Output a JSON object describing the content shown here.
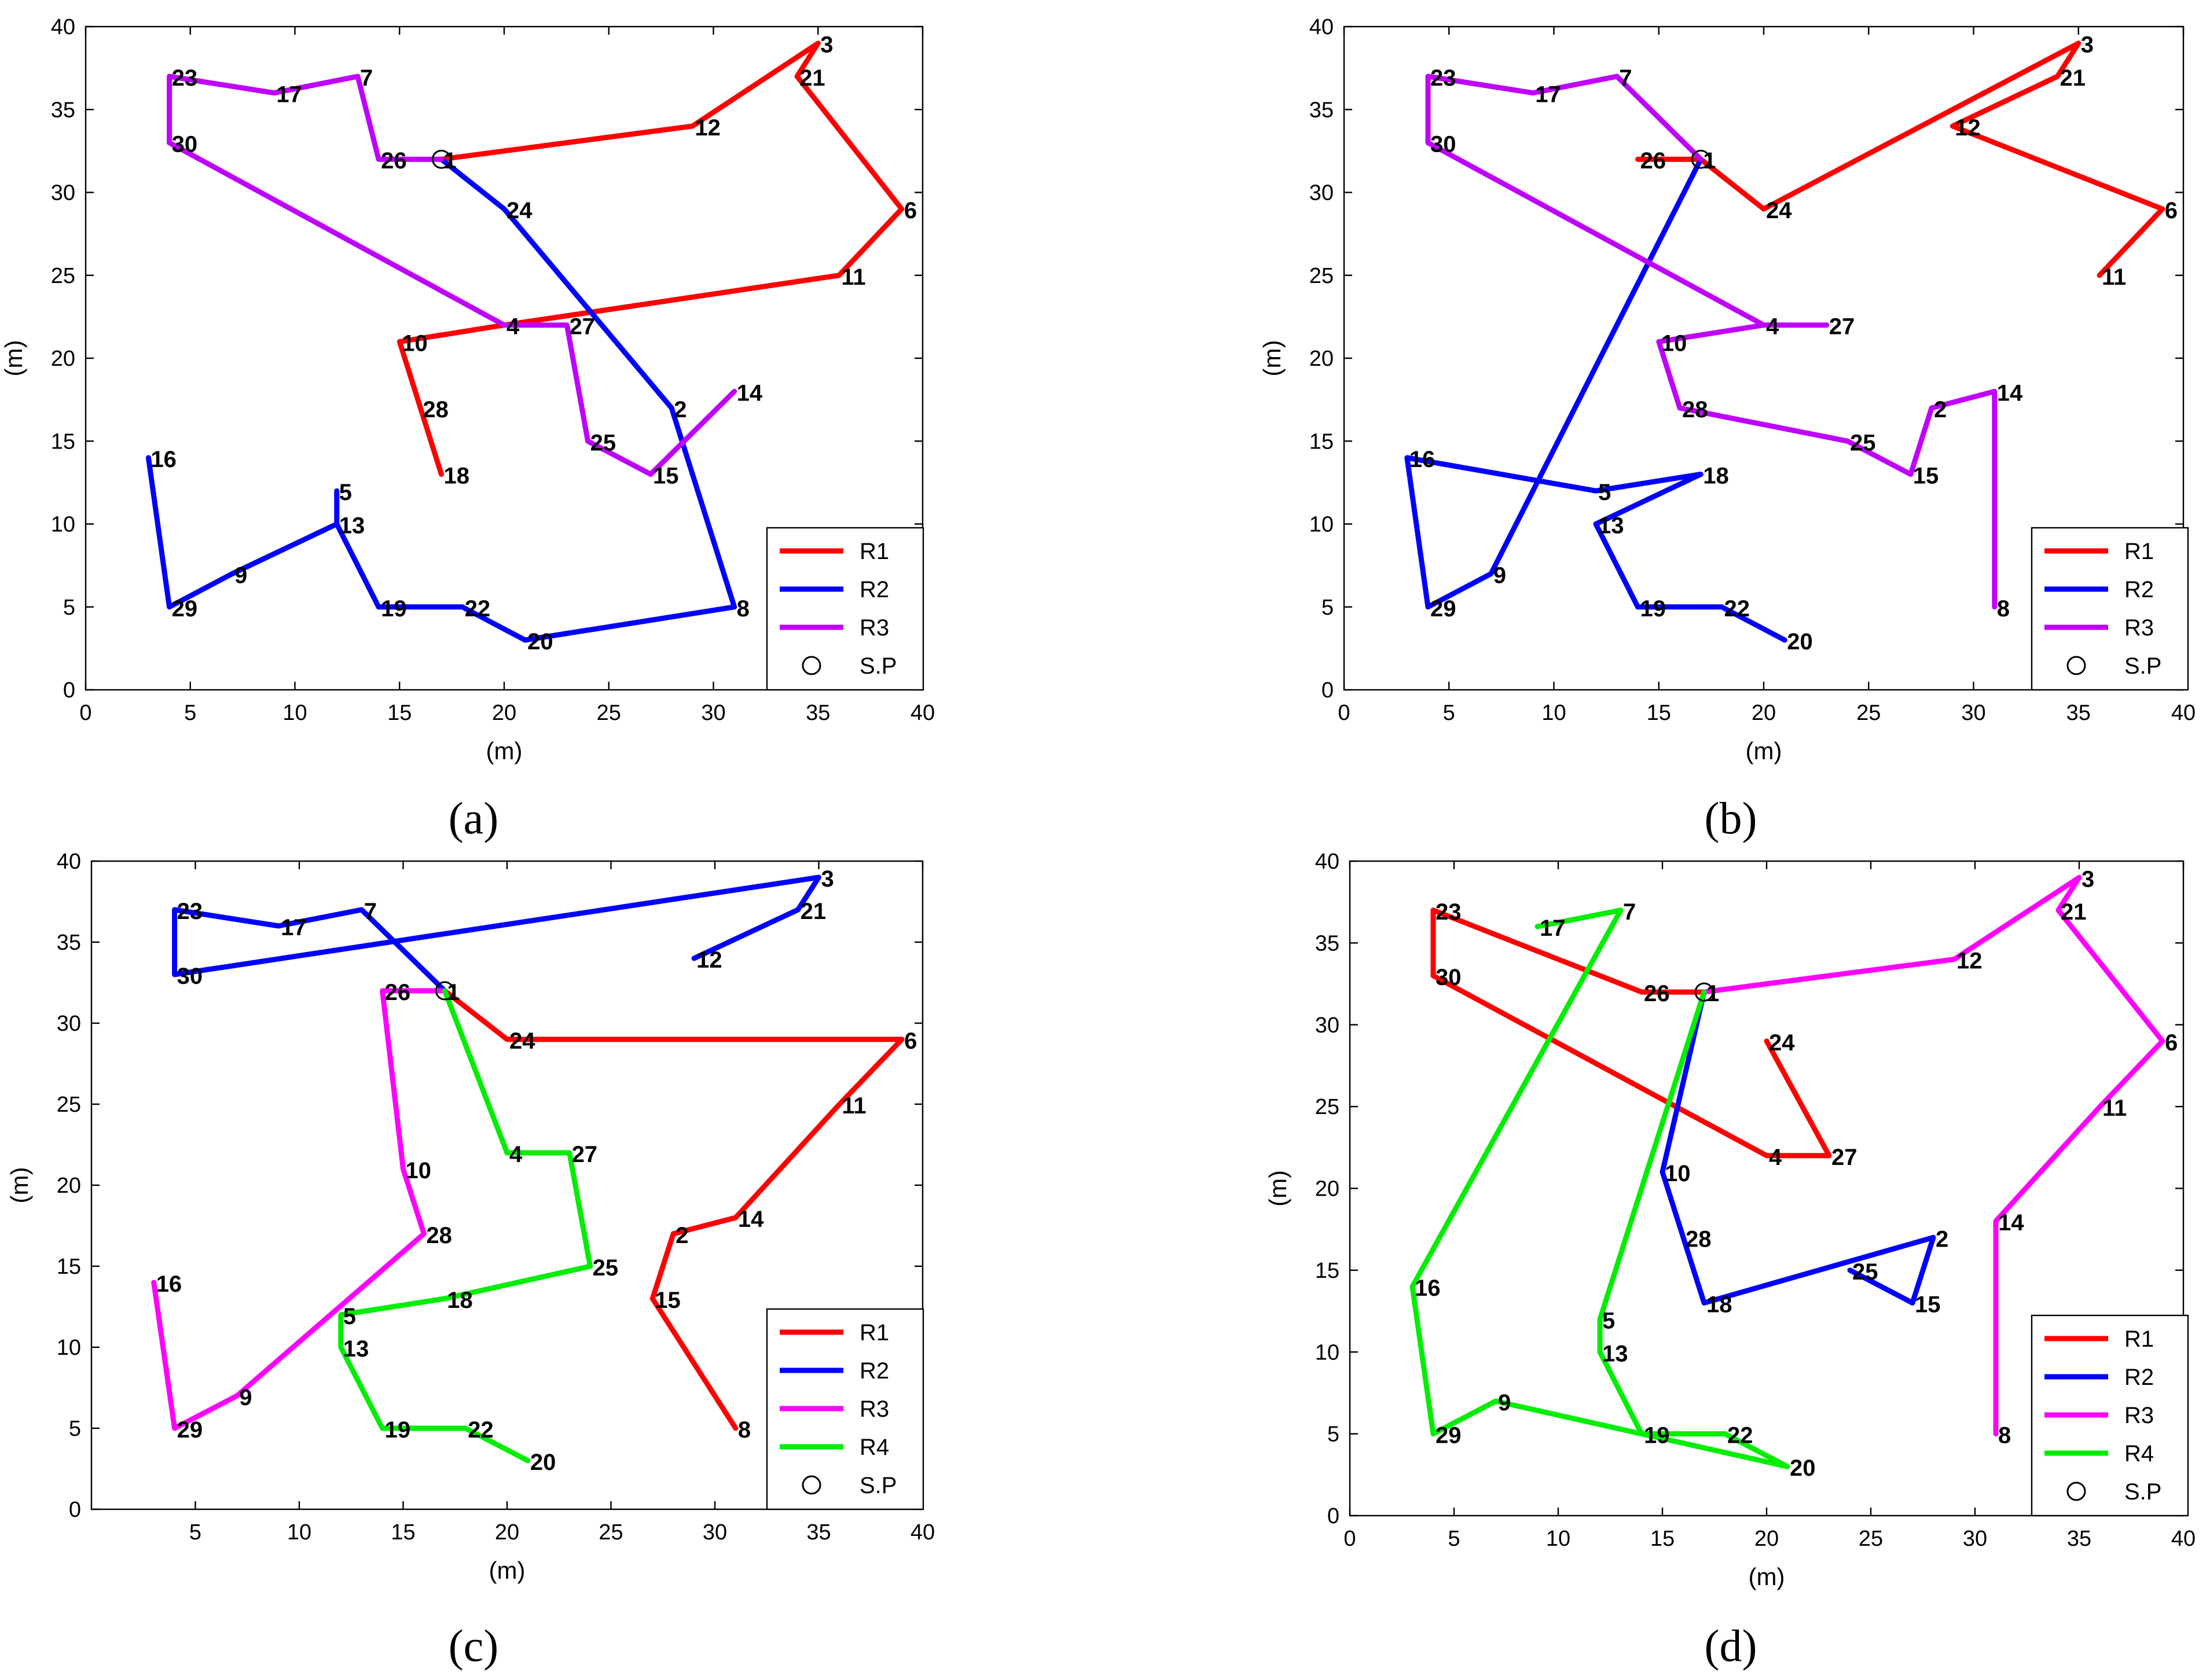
{
  "chart_data": [
    {
      "type": "line",
      "panel": "(a)",
      "xlabel": "(m)",
      "ylabel": "(m)",
      "xlim": [
        0,
        40
      ],
      "ylim": [
        0,
        40
      ],
      "xticks": [
        "0",
        "5",
        "10",
        "15",
        "20",
        "25",
        "30",
        "35",
        "40"
      ],
      "yticks": [
        "0",
        "5",
        "10",
        "15",
        "20",
        "25",
        "30",
        "35",
        "40"
      ],
      "legend_position": "bottom-right",
      "colors": {
        "R1": "#ff0000",
        "R2": "#0000ff",
        "R3": "#bf00ff"
      },
      "start_point": {
        "label": "S.P",
        "x": 17,
        "y": 32
      },
      "legend": [
        "R1",
        "R2",
        "R3",
        "S.P"
      ],
      "points": [
        {
          "label": "1",
          "x": 17,
          "y": 32
        },
        {
          "label": "2",
          "x": 28,
          "y": 17
        },
        {
          "label": "3",
          "x": 35,
          "y": 39
        },
        {
          "label": "4",
          "x": 20,
          "y": 22
        },
        {
          "label": "5",
          "x": 12,
          "y": 12
        },
        {
          "label": "6",
          "x": 39,
          "y": 29
        },
        {
          "label": "7",
          "x": 13,
          "y": 37
        },
        {
          "label": "8",
          "x": 31,
          "y": 5
        },
        {
          "label": "9",
          "x": 7,
          "y": 7
        },
        {
          "label": "10",
          "x": 15,
          "y": 21
        },
        {
          "label": "11",
          "x": 36,
          "y": 25
        },
        {
          "label": "12",
          "x": 29,
          "y": 34
        },
        {
          "label": "13",
          "x": 12,
          "y": 10
        },
        {
          "label": "14",
          "x": 31,
          "y": 18
        },
        {
          "label": "15",
          "x": 27,
          "y": 13
        },
        {
          "label": "16",
          "x": 3,
          "y": 14
        },
        {
          "label": "17",
          "x": 9,
          "y": 36
        },
        {
          "label": "18",
          "x": 17,
          "y": 13
        },
        {
          "label": "19",
          "x": 14,
          "y": 5
        },
        {
          "label": "20",
          "x": 21,
          "y": 3
        },
        {
          "label": "21",
          "x": 34,
          "y": 37
        },
        {
          "label": "22",
          "x": 18,
          "y": 5
        },
        {
          "label": "23",
          "x": 4,
          "y": 37
        },
        {
          "label": "24",
          "x": 20,
          "y": 29
        },
        {
          "label": "25",
          "x": 24,
          "y": 15
        },
        {
          "label": "26",
          "x": 14,
          "y": 32
        },
        {
          "label": "27",
          "x": 23,
          "y": 22
        },
        {
          "label": "28",
          "x": 16,
          "y": 17
        },
        {
          "label": "29",
          "x": 4,
          "y": 5
        },
        {
          "label": "30",
          "x": 4,
          "y": 33
        }
      ],
      "series": [
        {
          "name": "R1",
          "route": [
            "1",
            "12",
            "3",
            "21",
            "6",
            "11",
            "4",
            "10",
            "28",
            "18"
          ]
        },
        {
          "name": "R2",
          "route": [
            "1",
            "24",
            "2",
            "8",
            "20",
            "22",
            "19",
            "13",
            "5",
            "13",
            "9",
            "29",
            "16"
          ]
        },
        {
          "name": "R3",
          "route": [
            "1",
            "26",
            "7",
            "17",
            "23",
            "30",
            "4",
            "27",
            "25",
            "15",
            "14"
          ]
        }
      ]
    },
    {
      "type": "line",
      "panel": "(b)",
      "xlabel": "(m)",
      "ylabel": "(m)",
      "xlim": [
        0,
        40
      ],
      "ylim": [
        0,
        40
      ],
      "xticks": [
        "0",
        "5",
        "10",
        "15",
        "20",
        "25",
        "30",
        "35",
        "40"
      ],
      "yticks": [
        "0",
        "5",
        "10",
        "15",
        "20",
        "25",
        "30",
        "35",
        "40"
      ],
      "legend_position": "bottom-right",
      "colors": {
        "R1": "#ff0000",
        "R2": "#0000ff",
        "R3": "#bf00ff"
      },
      "start_point": {
        "label": "S.P",
        "x": 17,
        "y": 32
      },
      "legend": [
        "R1",
        "R2",
        "R3",
        "S.P"
      ],
      "points": [
        {
          "label": "1",
          "x": 17,
          "y": 32
        },
        {
          "label": "2",
          "x": 28,
          "y": 17
        },
        {
          "label": "3",
          "x": 35,
          "y": 39
        },
        {
          "label": "4",
          "x": 20,
          "y": 22
        },
        {
          "label": "5",
          "x": 12,
          "y": 12
        },
        {
          "label": "6",
          "x": 39,
          "y": 29
        },
        {
          "label": "7",
          "x": 13,
          "y": 37
        },
        {
          "label": "8",
          "x": 31,
          "y": 5
        },
        {
          "label": "9",
          "x": 7,
          "y": 7
        },
        {
          "label": "10",
          "x": 15,
          "y": 21
        },
        {
          "label": "11",
          "x": 36,
          "y": 25
        },
        {
          "label": "12",
          "x": 29,
          "y": 34
        },
        {
          "label": "13",
          "x": 12,
          "y": 10
        },
        {
          "label": "14",
          "x": 31,
          "y": 18
        },
        {
          "label": "15",
          "x": 27,
          "y": 13
        },
        {
          "label": "16",
          "x": 3,
          "y": 14
        },
        {
          "label": "17",
          "x": 9,
          "y": 36
        },
        {
          "label": "18",
          "x": 17,
          "y": 13
        },
        {
          "label": "19",
          "x": 14,
          "y": 5
        },
        {
          "label": "20",
          "x": 21,
          "y": 3
        },
        {
          "label": "21",
          "x": 34,
          "y": 37
        },
        {
          "label": "22",
          "x": 18,
          "y": 5
        },
        {
          "label": "23",
          "x": 4,
          "y": 37
        },
        {
          "label": "24",
          "x": 20,
          "y": 29
        },
        {
          "label": "25",
          "x": 24,
          "y": 15
        },
        {
          "label": "26",
          "x": 14,
          "y": 32
        },
        {
          "label": "27",
          "x": 23,
          "y": 22
        },
        {
          "label": "28",
          "x": 16,
          "y": 17
        },
        {
          "label": "29",
          "x": 4,
          "y": 5
        },
        {
          "label": "30",
          "x": 4,
          "y": 33
        }
      ],
      "series": [
        {
          "name": "R1",
          "route": [
            "26",
            "1",
            "24",
            "3",
            "21",
            "12",
            "6",
            "11"
          ]
        },
        {
          "name": "R2",
          "route": [
            "1",
            "9",
            "29",
            "16",
            "5",
            "18",
            "13",
            "19",
            "22",
            "20"
          ]
        },
        {
          "name": "R3",
          "route": [
            "1",
            "7",
            "17",
            "23",
            "30",
            "4",
            "27",
            "4",
            "10",
            "28",
            "25",
            "15",
            "2",
            "14",
            "8"
          ]
        }
      ]
    },
    {
      "type": "line",
      "panel": "(c)",
      "xlabel": "(m)",
      "ylabel": "(m)",
      "xlim": [
        0,
        40
      ],
      "ylim": [
        0,
        40
      ],
      "xticks": [
        "5",
        "10",
        "15",
        "20",
        "25",
        "30",
        "35",
        "40"
      ],
      "yticks": [
        "0",
        "5",
        "10",
        "15",
        "20",
        "25",
        "30",
        "35",
        "40"
      ],
      "legend_position": "bottom-right",
      "colors": {
        "R1": "#ff0000",
        "R2": "#0000ff",
        "R3": "#ff00ff",
        "R4": "#00ee00"
      },
      "start_point": {
        "label": "S.P",
        "x": 17,
        "y": 32
      },
      "legend": [
        "R1",
        "R2",
        "R3",
        "R4",
        "S.P"
      ],
      "points": [
        {
          "label": "1",
          "x": 17,
          "y": 32
        },
        {
          "label": "2",
          "x": 28,
          "y": 17
        },
        {
          "label": "3",
          "x": 35,
          "y": 39
        },
        {
          "label": "4",
          "x": 20,
          "y": 22
        },
        {
          "label": "5",
          "x": 12,
          "y": 12
        },
        {
          "label": "6",
          "x": 39,
          "y": 29
        },
        {
          "label": "7",
          "x": 13,
          "y": 37
        },
        {
          "label": "8",
          "x": 31,
          "y": 5
        },
        {
          "label": "9",
          "x": 7,
          "y": 7
        },
        {
          "label": "10",
          "x": 15,
          "y": 21
        },
        {
          "label": "11",
          "x": 36,
          "y": 25
        },
        {
          "label": "12",
          "x": 29,
          "y": 34
        },
        {
          "label": "13",
          "x": 12,
          "y": 10
        },
        {
          "label": "14",
          "x": 31,
          "y": 18
        },
        {
          "label": "15",
          "x": 27,
          "y": 13
        },
        {
          "label": "16",
          "x": 3,
          "y": 14
        },
        {
          "label": "17",
          "x": 9,
          "y": 36
        },
        {
          "label": "18",
          "x": 17,
          "y": 13
        },
        {
          "label": "19",
          "x": 14,
          "y": 5
        },
        {
          "label": "20",
          "x": 21,
          "y": 3
        },
        {
          "label": "21",
          "x": 34,
          "y": 37
        },
        {
          "label": "22",
          "x": 18,
          "y": 5
        },
        {
          "label": "23",
          "x": 4,
          "y": 37
        },
        {
          "label": "24",
          "x": 20,
          "y": 29
        },
        {
          "label": "25",
          "x": 24,
          "y": 15
        },
        {
          "label": "26",
          "x": 14,
          "y": 32
        },
        {
          "label": "27",
          "x": 23,
          "y": 22
        },
        {
          "label": "28",
          "x": 16,
          "y": 17
        },
        {
          "label": "29",
          "x": 4,
          "y": 5
        },
        {
          "label": "30",
          "x": 4,
          "y": 33
        }
      ],
      "series": [
        {
          "name": "R1",
          "route": [
            "1",
            "24",
            "6",
            "11",
            "14",
            "2",
            "15",
            "8"
          ]
        },
        {
          "name": "R2",
          "route": [
            "1",
            "7",
            "17",
            "23",
            "30",
            "3",
            "21",
            "12"
          ]
        },
        {
          "name": "R3",
          "route": [
            "1",
            "26",
            "10",
            "28",
            "9",
            "29",
            "16"
          ]
        },
        {
          "name": "R4",
          "route": [
            "1",
            "4",
            "27",
            "25",
            "18",
            "5",
            "13",
            "19",
            "22",
            "20"
          ]
        }
      ]
    },
    {
      "type": "line",
      "panel": "(d)",
      "xlabel": "(m)",
      "ylabel": "(m)",
      "xlim": [
        0,
        40
      ],
      "ylim": [
        0,
        40
      ],
      "xticks": [
        "0",
        "5",
        "10",
        "15",
        "20",
        "25",
        "30",
        "35",
        "40"
      ],
      "yticks": [
        "0",
        "5",
        "10",
        "15",
        "20",
        "25",
        "30",
        "35",
        "40"
      ],
      "legend_position": "bottom-right",
      "colors": {
        "R1": "#ff0000",
        "R2": "#0000ff",
        "R3": "#ff00ff",
        "R4": "#00ee00"
      },
      "start_point": {
        "label": "S.P",
        "x": 17,
        "y": 32
      },
      "legend": [
        "R1",
        "R2",
        "R3",
        "R4",
        "S.P"
      ],
      "points": [
        {
          "label": "1",
          "x": 17,
          "y": 32
        },
        {
          "label": "2",
          "x": 28,
          "y": 17
        },
        {
          "label": "3",
          "x": 35,
          "y": 39
        },
        {
          "label": "4",
          "x": 20,
          "y": 22
        },
        {
          "label": "5",
          "x": 12,
          "y": 12
        },
        {
          "label": "6",
          "x": 39,
          "y": 29
        },
        {
          "label": "7",
          "x": 13,
          "y": 37
        },
        {
          "label": "8",
          "x": 31,
          "y": 5
        },
        {
          "label": "9",
          "x": 7,
          "y": 7
        },
        {
          "label": "10",
          "x": 15,
          "y": 21
        },
        {
          "label": "11",
          "x": 36,
          "y": 25
        },
        {
          "label": "12",
          "x": 29,
          "y": 34
        },
        {
          "label": "13",
          "x": 12,
          "y": 10
        },
        {
          "label": "14",
          "x": 31,
          "y": 18
        },
        {
          "label": "15",
          "x": 27,
          "y": 13
        },
        {
          "label": "16",
          "x": 3,
          "y": 14
        },
        {
          "label": "17",
          "x": 9,
          "y": 36
        },
        {
          "label": "18",
          "x": 17,
          "y": 13
        },
        {
          "label": "19",
          "x": 14,
          "y": 5
        },
        {
          "label": "20",
          "x": 21,
          "y": 3
        },
        {
          "label": "21",
          "x": 34,
          "y": 37
        },
        {
          "label": "22",
          "x": 18,
          "y": 5
        },
        {
          "label": "23",
          "x": 4,
          "y": 37
        },
        {
          "label": "24",
          "x": 20,
          "y": 29
        },
        {
          "label": "25",
          "x": 24,
          "y": 15
        },
        {
          "label": "26",
          "x": 14,
          "y": 32
        },
        {
          "label": "27",
          "x": 23,
          "y": 22
        },
        {
          "label": "28",
          "x": 16,
          "y": 17
        },
        {
          "label": "29",
          "x": 4,
          "y": 5
        },
        {
          "label": "30",
          "x": 4,
          "y": 33
        }
      ],
      "series": [
        {
          "name": "R1",
          "route": [
            "1",
            "26",
            "23",
            "30",
            "4",
            "27",
            "24"
          ]
        },
        {
          "name": "R2",
          "route": [
            "1",
            "10",
            "18",
            "2",
            "15",
            "25"
          ]
        },
        {
          "name": "R3",
          "route": [
            "1",
            "12",
            "3",
            "21",
            "6",
            "11",
            "14",
            "8"
          ]
        },
        {
          "name": "R4",
          "route": [
            "1",
            "5",
            "13",
            "19",
            "22",
            "20",
            "9",
            "29",
            "16",
            "7",
            "17"
          ]
        }
      ]
    }
  ]
}
